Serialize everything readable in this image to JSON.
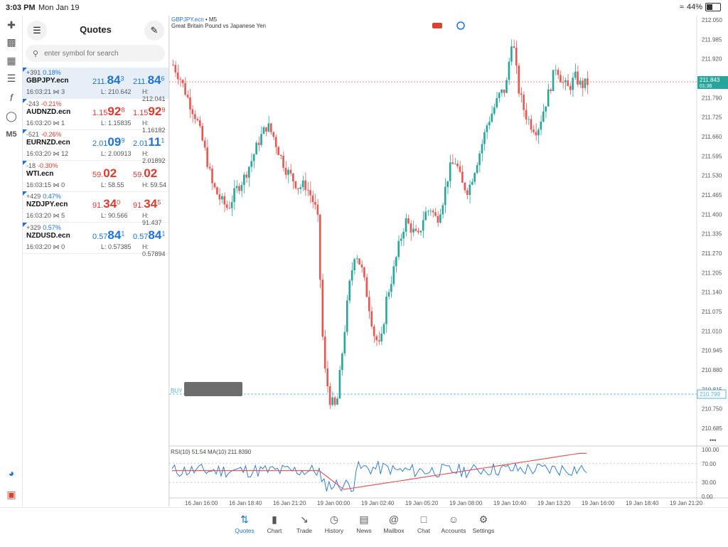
{
  "status_bar": {
    "time": "3:03 PM",
    "date": "Mon Jan 19",
    "battery": "44%"
  },
  "left_toolbar": {
    "timeframe": "M5"
  },
  "quotes_panel": {
    "title": "Quotes",
    "search_placeholder": "enter symbol for search",
    "rows": [
      {
        "change": "+391",
        "pct": "0.18%",
        "symbol": "GBPJPY.ecn",
        "time": "16:03:21",
        "spread": "3",
        "bid_a": "211.",
        "bid_b": "84",
        "bid_c": "3",
        "ask_a": "211.",
        "ask_b": "84",
        "ask_c": "6",
        "low": "L: 210.642",
        "high": "H: 212.041"
      },
      {
        "change": "-243",
        "pct": "-0.21%",
        "symbol": "AUDNZD.ecn",
        "time": "16:03:20",
        "spread": "1",
        "bid_a": "1.15",
        "bid_b": "92",
        "bid_c": "8",
        "ask_a": "1.15",
        "ask_b": "92",
        "ask_c": "9",
        "low": "L: 1.15835",
        "high": "H: 1.16182"
      },
      {
        "change": "-521",
        "pct": "-0.26%",
        "symbol": "EURNZD.ecn",
        "time": "16:03:20",
        "spread": "12",
        "bid_a": "2.01",
        "bid_b": "09",
        "bid_c": "9",
        "ask_a": "2.01",
        "ask_b": "11",
        "ask_c": "1",
        "low": "L: 2.00913",
        "high": "H: 2.01892"
      },
      {
        "change": "-18",
        "pct": "-0.30%",
        "symbol": "WTI.ecn",
        "time": "16:03:15",
        "spread": "0",
        "bid_a": "59.",
        "bid_b": "02",
        "bid_c": "",
        "ask_a": "59.",
        "ask_b": "02",
        "ask_c": "",
        "low": "L: 58.55",
        "high": "H: 59.54"
      },
      {
        "change": "+429",
        "pct": "0.47%",
        "symbol": "NZDJPY.ecn",
        "time": "16:03:20",
        "spread": "5",
        "bid_a": "91.",
        "bid_b": "34",
        "bid_c": "0",
        "ask_a": "91.",
        "ask_b": "34",
        "ask_c": "5",
        "low": "L: 90.566",
        "high": "H: 91.437"
      },
      {
        "change": "+329",
        "pct": "0.57%",
        "symbol": "NZDUSD.ecn",
        "time": "16:03:20",
        "spread": "0",
        "bid_a": "0.57",
        "bid_b": "84",
        "bid_c": "1",
        "ask_a": "0.57",
        "ask_b": "84",
        "ask_c": "1",
        "low": "L: 0.57385",
        "high": "H: 0.57894"
      }
    ]
  },
  "chart": {
    "symbol": "GBPJPY.ecn",
    "timeframe": "M5",
    "description": "Great Britain Pound vs Japanese Yen",
    "price_ticks": [
      "212.050",
      "211.985",
      "211.920",
      "211.855",
      "211.790",
      "211.725",
      "211.660",
      "211.595",
      "211.530",
      "211.465",
      "211.400",
      "211.335",
      "211.270",
      "211.205",
      "211.140",
      "211.075",
      "211.010",
      "210.945",
      "210.880",
      "210.815",
      "210.750",
      "210.685"
    ],
    "current_price": "211.843",
    "current_countdown": "01:36",
    "buy_line_label": "BUY",
    "buy_price": "210.799",
    "indicator_label": "RSI(10) 51.54 MA(10) 211.8390",
    "indicator_ticks": [
      "100.00",
      "70.00",
      "30.00",
      "0.00"
    ],
    "time_ticks": [
      "16 Jan 16:00",
      "16 Jan 18:40",
      "16 Jan 21:20",
      "19 Jan 00:00",
      "19 Jan 02:40",
      "19 Jan 05:20",
      "19 Jan 08:00",
      "19 Jan 10:40",
      "19 Jan 13:20",
      "19 Jan 16:00",
      "19 Jan 18:40",
      "19 Jan 21:20"
    ],
    "more_label": "•••",
    "colors": {
      "bull": "#26a69a",
      "bear": "#ef5350",
      "rsi": "#1e73d9",
      "ma": "#e84c4c"
    }
  },
  "bottom_nav": [
    {
      "label": "Quotes",
      "icon": "quotes-icon",
      "active": true
    },
    {
      "label": "Chart",
      "icon": "candles-icon",
      "active": false
    },
    {
      "label": "Trade",
      "icon": "trade-icon",
      "active": false
    },
    {
      "label": "History",
      "icon": "history-icon",
      "active": false
    },
    {
      "label": "News",
      "icon": "news-icon",
      "active": false
    },
    {
      "label": "Mailbox",
      "icon": "mailbox-icon",
      "active": false
    },
    {
      "label": "Chat",
      "icon": "chat-icon",
      "active": false
    },
    {
      "label": "Accounts",
      "icon": "accounts-icon",
      "active": false
    },
    {
      "label": "Settings",
      "icon": "settings-icon",
      "active": false
    }
  ]
}
